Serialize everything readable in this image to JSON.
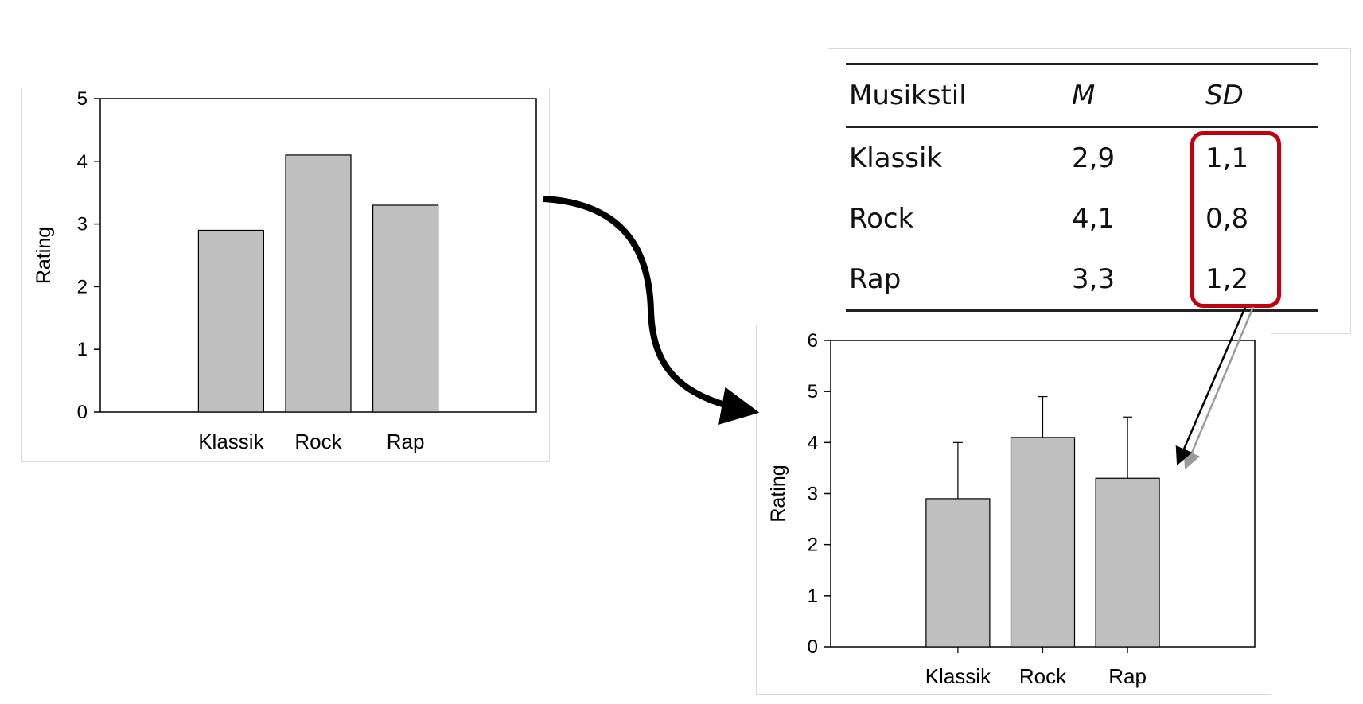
{
  "chart_data": [
    {
      "type": "bar",
      "categories": [
        "Klassik",
        "Rock",
        "Rap"
      ],
      "values": [
        2.9,
        4.1,
        3.3
      ],
      "ylabel": "Rating",
      "ylim": [
        0,
        5
      ],
      "yticks": [
        "0",
        "1",
        "2",
        "3",
        "4",
        "5"
      ],
      "bar_color": "#bfbfbf"
    },
    {
      "type": "bar",
      "categories": [
        "Klassik",
        "Rock",
        "Rap"
      ],
      "values": [
        2.9,
        4.1,
        3.3
      ],
      "error_bars": [
        1.1,
        0.8,
        1.2
      ],
      "ylabel": "Rating",
      "ylim": [
        0,
        6
      ],
      "yticks": [
        "0",
        "1",
        "2",
        "3",
        "4",
        "5",
        "6"
      ],
      "bar_color": "#bfbfbf"
    }
  ],
  "table": {
    "headers": [
      "Musikstil",
      "M",
      "SD"
    ],
    "rows": [
      [
        "Klassik",
        "2,9",
        "1,1"
      ],
      [
        "Rock",
        "4,1",
        "0,8"
      ],
      [
        "Rap",
        "3,3",
        "1,2"
      ]
    ],
    "highlight_color": "#c0000f"
  }
}
